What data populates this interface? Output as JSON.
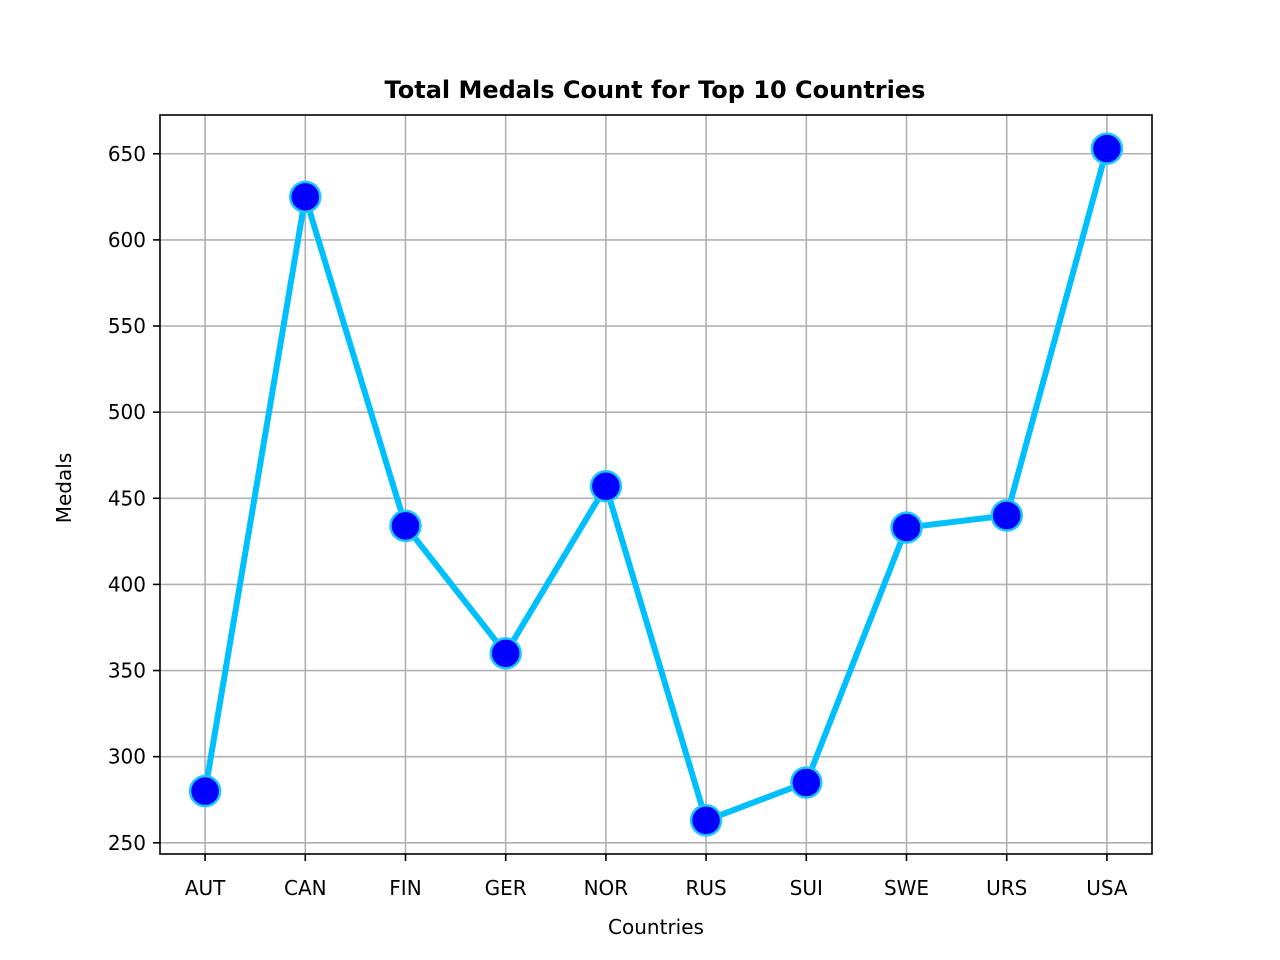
{
  "chart_data": {
    "type": "line",
    "title": "Total Medals Count for Top 10 Countries",
    "xlabel": "Countries",
    "ylabel": "Medals",
    "categories": [
      "AUT",
      "CAN",
      "FIN",
      "GER",
      "NOR",
      "RUS",
      "SUI",
      "SWE",
      "URS",
      "USA"
    ],
    "series": [
      {
        "name": "Medals",
        "values": [
          280,
          625,
          434,
          360,
          457,
          263,
          285,
          433,
          440,
          653
        ]
      }
    ],
    "ylim": [
      243.5,
      672.5
    ],
    "yticks": [
      250,
      300,
      350,
      400,
      450,
      500,
      550,
      600,
      650
    ],
    "grid": true,
    "colors": {
      "line": "#00bfff",
      "marker_face": "#0000ff",
      "marker_edge": "#1ec8ff",
      "grid": "#b0b0b0",
      "axes": "#000000"
    }
  }
}
